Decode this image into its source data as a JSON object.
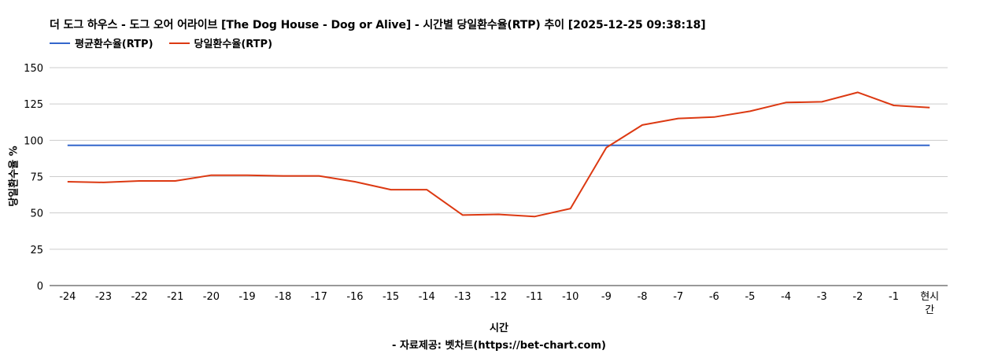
{
  "chart_data": {
    "type": "line",
    "title": "더 도그 하우스 - 도그 오어 어라이브 [The Dog House - Dog or Alive] - 시간별 당일환수율(RTP) 추이 [2025-12-25 09:38:18]",
    "xlabel": "시간",
    "ylabel": "당일환수율 %",
    "source": "- 자료제공: 벳차트(https://bet-chart.com)",
    "categories": [
      "-24",
      "-23",
      "-22",
      "-21",
      "-20",
      "-19",
      "-18",
      "-17",
      "-16",
      "-15",
      "-14",
      "-13",
      "-12",
      "-11",
      "-10",
      "-9",
      "-8",
      "-7",
      "-6",
      "-5",
      "-4",
      "-3",
      "-2",
      "-1",
      "현시간"
    ],
    "yticks": [
      "0",
      "25",
      "50",
      "75",
      "100",
      "125",
      "150"
    ],
    "ylim": [
      0,
      150
    ],
    "grid": true,
    "legend_position": "top-left",
    "series": [
      {
        "name": "평균환수율(RTP)",
        "color": "#3366cc",
        "values": [
          96.5,
          96.5,
          96.5,
          96.5,
          96.5,
          96.5,
          96.5,
          96.5,
          96.5,
          96.5,
          96.5,
          96.5,
          96.5,
          96.5,
          96.5,
          96.5,
          96.5,
          96.5,
          96.5,
          96.5,
          96.5,
          96.5,
          96.5,
          96.5,
          96.5
        ]
      },
      {
        "name": "당일환수율(RTP)",
        "color": "#dc3912",
        "values": [
          71.5,
          71,
          72,
          72,
          76,
          76,
          75.5,
          75.5,
          71.5,
          66,
          66,
          48.5,
          49,
          47.5,
          53,
          95,
          110.5,
          115,
          116,
          120,
          126,
          126.5,
          133,
          124,
          122.5
        ]
      }
    ]
  }
}
